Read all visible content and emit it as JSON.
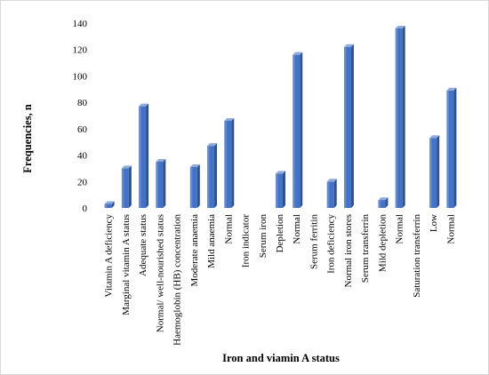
{
  "chart_data": {
    "type": "bar",
    "title": "",
    "xlabel": "Iron and viamin A status",
    "ylabel": "Frequencies, n",
    "ylim": [
      0,
      140
    ],
    "yticks": [
      0,
      20,
      40,
      60,
      80,
      100,
      120,
      140
    ],
    "grid": false,
    "legend": "none",
    "bar_color": "#4472c4",
    "categories": [
      "Vitamin A deficiency",
      "Marginal vitamin A status",
      "Adequate status",
      "Normal/ well-nourished status",
      "Haemoglobin (HB) concentration",
      "Moderate anaemia",
      "Mild anaemia",
      "Normal",
      "Iron indicator",
      "Serum iron",
      "Depletion",
      "Normal",
      "Serum ferritin",
      "Iron deficiency",
      "Normal iron stores",
      "Serum transferrin",
      "Mild depletion",
      "Normal",
      "Saturation transferrin",
      "Low",
      "Normal"
    ],
    "values": [
      3,
      30,
      77,
      35,
      null,
      31,
      47,
      66,
      null,
      null,
      26,
      116,
      null,
      20,
      122,
      null,
      6,
      136,
      null,
      53,
      89
    ]
  }
}
